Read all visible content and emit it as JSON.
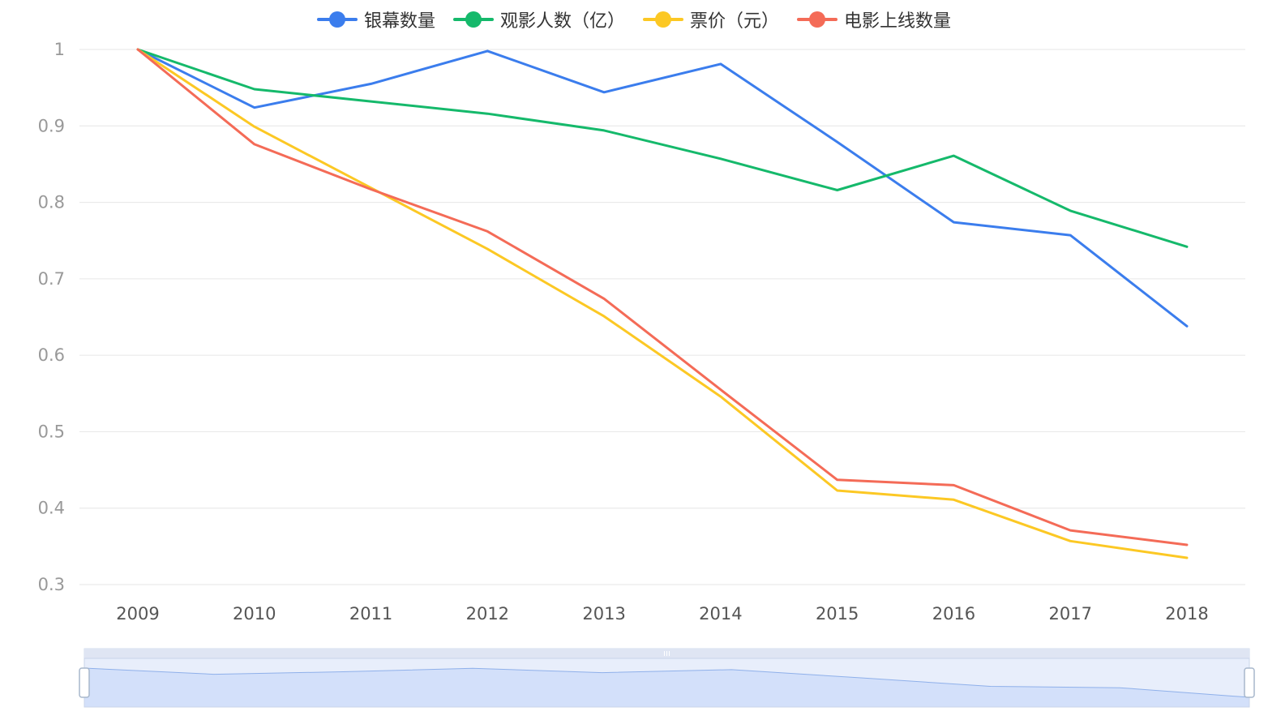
{
  "chart_data": {
    "type": "line",
    "title": "",
    "xlabel": "",
    "ylabel": "",
    "categories": [
      "2009",
      "2010",
      "2011",
      "2012",
      "2013",
      "2014",
      "2015",
      "2016",
      "2017",
      "2018"
    ],
    "ylim": [
      0.3,
      1.0
    ],
    "yticks": [
      "0.3",
      "0.4",
      "0.5",
      "0.6",
      "0.7",
      "0.8",
      "0.9",
      "1"
    ],
    "grid": true,
    "legend_position": "top-center",
    "series": [
      {
        "name": "银幕数量",
        "color": "#3b7ded",
        "values": [
          1.0,
          0.924,
          0.955,
          0.998,
          0.944,
          0.981,
          0.879,
          0.774,
          0.757,
          0.638
        ]
      },
      {
        "name": "观影人数（亿）",
        "color": "#15b96b",
        "values": [
          1.0,
          0.948,
          0.932,
          0.916,
          0.894,
          0.857,
          0.816,
          0.861,
          0.789,
          0.742
        ]
      },
      {
        "name": "票价（元）",
        "color": "#fcc824",
        "values": [
          1.0,
          0.899,
          0.819,
          0.739,
          0.651,
          0.546,
          0.423,
          0.411,
          0.357,
          0.335
        ]
      },
      {
        "name": "电影上线数量",
        "color": "#f46b57",
        "values": [
          1.0,
          0.876,
          0.817,
          0.762,
          0.674,
          0.555,
          0.437,
          0.43,
          0.371,
          0.352
        ]
      }
    ],
    "data_zoom": {
      "range_percent": [
        0,
        100
      ],
      "preview_series": "银幕数量"
    }
  }
}
